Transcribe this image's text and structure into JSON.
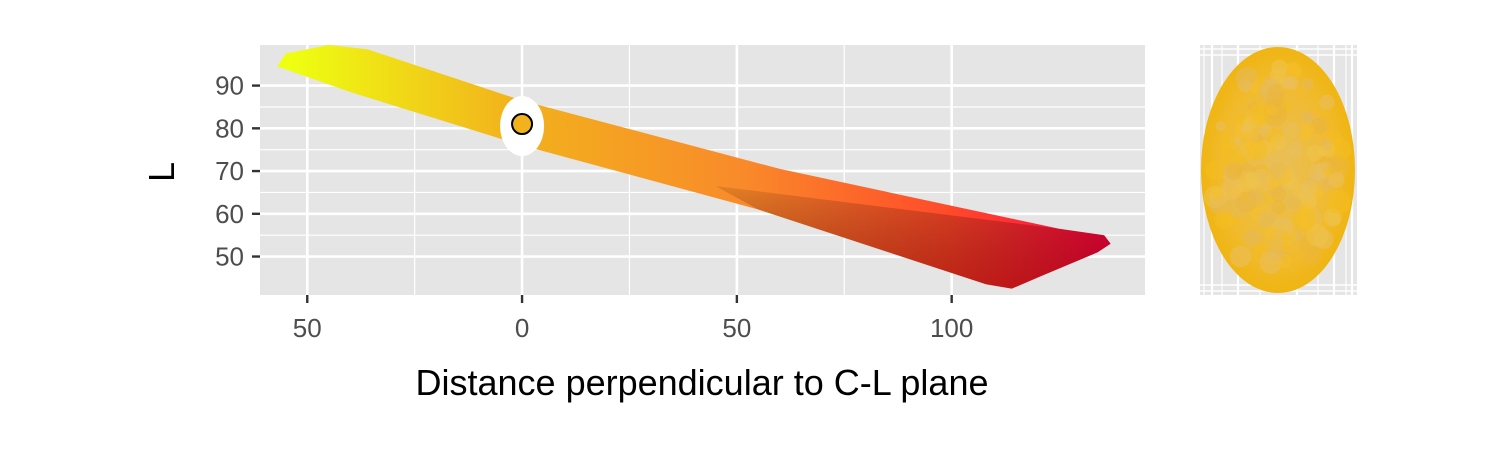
{
  "chart_data": {
    "type": "scatter",
    "xlabel": "Distance perpendicular to C-L plane",
    "ylabel": "L",
    "xlim": [
      -61,
      145
    ],
    "ylim": [
      41,
      99.5
    ],
    "x_ticks": [
      -50,
      0,
      50,
      100
    ],
    "x_tick_labels": [
      "50",
      "0",
      "50",
      "100"
    ],
    "y_ticks": [
      50,
      60,
      70,
      80,
      90
    ],
    "y_tick_labels": [
      "50",
      "60",
      "70",
      "80",
      "90"
    ],
    "grid": true,
    "legend": "none",
    "gamut_band": {
      "description_points": [
        {
          "x": -50,
          "L": 97,
          "color": "#eeff11"
        },
        {
          "x": 0,
          "L": 81,
          "color": "#f2b21c"
        },
        {
          "x": 50,
          "L": 67,
          "color": "#f98a2a"
        },
        {
          "x": 113,
          "L": 44,
          "color": "#cc0000"
        },
        {
          "x": 136,
          "L": 53.5,
          "color": "#ff0044"
        }
      ]
    },
    "highlight_point": {
      "x": 0,
      "L": 81,
      "color": "#f2b21c"
    },
    "side_panel": {
      "shape": "ellipse",
      "fill": "#f0bb2a"
    }
  },
  "colors": {
    "panel_background": "#e5e5e5",
    "grid_major": "#ffffff",
    "highlight_outline": "#000000"
  }
}
